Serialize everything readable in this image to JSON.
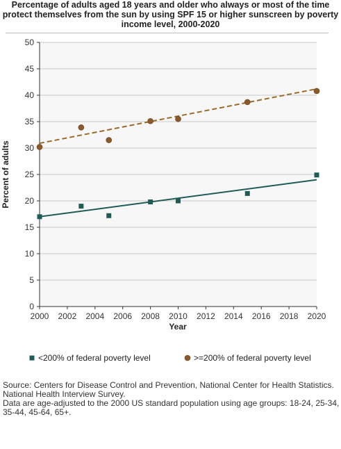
{
  "chart_data": {
    "type": "scatter",
    "title": "Percentage of adults aged 18 years and older who always or most of the time protect themselves from the sun by using SPF 15 or higher sunscreen by poverty income level, 2000-2020",
    "xlabel": "Year",
    "ylabel": "Percent of adults",
    "xlim": [
      2000,
      2020
    ],
    "ylim": [
      0,
      50
    ],
    "xticks": [
      "2000",
      "2002",
      "2004",
      "2006",
      "2008",
      "2010",
      "2012",
      "2014",
      "2016",
      "2018",
      "2020"
    ],
    "yticks": [
      "0",
      "5",
      "10",
      "15",
      "20",
      "25",
      "30",
      "35",
      "40",
      "45",
      "50"
    ],
    "grid": "horizontal",
    "legend_position": "bottom",
    "series": [
      {
        "name": "<200% of federal poverty level",
        "marker": "square",
        "color": "#1f5c57",
        "trend_color": "#1f5c57",
        "trend_style": "solid",
        "x": [
          2000,
          2003,
          2005,
          2008,
          2010,
          2015,
          2020
        ],
        "y": [
          17.0,
          19.0,
          17.2,
          19.8,
          20.0,
          21.4,
          24.9
        ],
        "trend": [
          17.0,
          24.0
        ]
      },
      {
        "name": ">=200% of federal poverty level",
        "marker": "circle",
        "color": "#8b5a2b",
        "trend_color": "#9a6a2a",
        "trend_style": "dashed",
        "x": [
          2000,
          2003,
          2005,
          2008,
          2010,
          2015,
          2020
        ],
        "y": [
          30.2,
          33.9,
          31.5,
          35.1,
          35.5,
          38.7,
          40.8
        ],
        "trend": [
          30.9,
          41.2
        ]
      }
    ]
  },
  "source": {
    "line1": "Source: Centers for Disease Control and Prevention, National Center for Health Statistics.",
    "line2": "National Health Interview Survey.",
    "line3": "Data are age-adjusted to the 2000 US standard population using age groups: 18-24, 25-34,",
    "line4": "35-44, 45-64, 65+."
  },
  "colors": {
    "plot_background": "#f7f7f7",
    "gridline": "#c9c9c9",
    "axis": "#333333"
  }
}
